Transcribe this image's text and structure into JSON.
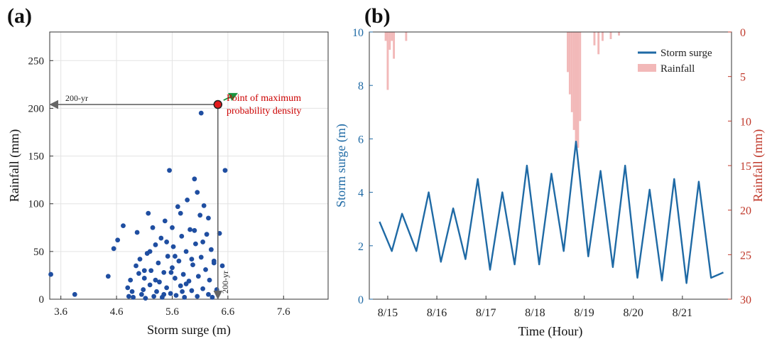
{
  "panel_a_label": "(a)",
  "panel_b_label": "(b)",
  "chart_data": [
    {
      "type": "scatter",
      "xlabel": "Storm surge (m)",
      "ylabel": "Rainfall (mm)",
      "xlim": [
        3.4,
        8.4
      ],
      "ylim": [
        0,
        280
      ],
      "xticks": [
        "3.6",
        "4.6",
        "5.6",
        "6.6",
        "7.6"
      ],
      "yticks": [
        "0",
        "50",
        "100",
        "150",
        "200",
        "250"
      ],
      "grid": true,
      "point_color": "#1f4ea1",
      "highlight": {
        "x": 6.42,
        "y": 204,
        "color": "#e41a1c",
        "label": "Point of maximum probability density"
      },
      "annotations": {
        "horizontal_label": "200-yr",
        "vertical_label": "200-yr",
        "label_color": "#cc0000",
        "arrow_color": "#1a9641"
      },
      "points": [
        [
          3.42,
          26
        ],
        [
          3.85,
          5
        ],
        [
          4.45,
          24
        ],
        [
          4.55,
          53
        ],
        [
          4.62,
          62
        ],
        [
          4.72,
          77
        ],
        [
          4.8,
          12
        ],
        [
          4.82,
          3
        ],
        [
          4.85,
          20
        ],
        [
          4.88,
          8
        ],
        [
          4.9,
          2
        ],
        [
          4.95,
          35
        ],
        [
          4.97,
          70
        ],
        [
          5.0,
          27
        ],
        [
          5.02,
          42
        ],
        [
          5.05,
          5
        ],
        [
          5.08,
          10
        ],
        [
          5.1,
          22
        ],
        [
          5.12,
          1
        ],
        [
          5.15,
          48
        ],
        [
          5.17,
          90
        ],
        [
          5.2,
          15
        ],
        [
          5.22,
          30
        ],
        [
          5.25,
          75
        ],
        [
          5.27,
          3
        ],
        [
          5.3,
          57
        ],
        [
          5.32,
          8
        ],
        [
          5.35,
          38
        ],
        [
          5.37,
          18
        ],
        [
          5.4,
          64
        ],
        [
          5.42,
          2
        ],
        [
          5.45,
          28
        ],
        [
          5.47,
          82
        ],
        [
          5.5,
          12
        ],
        [
          5.52,
          45
        ],
        [
          5.55,
          135
        ],
        [
          5.57,
          6
        ],
        [
          5.6,
          33
        ],
        [
          5.62,
          55
        ],
        [
          5.65,
          22
        ],
        [
          5.67,
          4
        ],
        [
          5.7,
          97
        ],
        [
          5.72,
          40
        ],
        [
          5.75,
          14
        ],
        [
          5.77,
          66
        ],
        [
          5.8,
          26
        ],
        [
          5.82,
          2
        ],
        [
          5.85,
          50
        ],
        [
          5.87,
          104
        ],
        [
          5.9,
          19
        ],
        [
          5.92,
          73
        ],
        [
          5.95,
          9
        ],
        [
          5.97,
          36
        ],
        [
          6.0,
          126
        ],
        [
          6.02,
          58
        ],
        [
          6.05,
          3
        ],
        [
          6.07,
          24
        ],
        [
          6.1,
          88
        ],
        [
          6.12,
          44
        ],
        [
          6.15,
          11
        ],
        [
          6.17,
          98
        ],
        [
          6.2,
          31
        ],
        [
          6.22,
          68
        ],
        [
          6.25,
          5
        ],
        [
          6.27,
          20
        ],
        [
          6.3,
          52
        ],
        [
          6.32,
          2
        ],
        [
          6.35,
          38
        ],
        [
          6.4,
          10
        ],
        [
          6.45,
          69
        ],
        [
          6.5,
          35
        ],
        [
          6.55,
          135
        ],
        [
          6.12,
          195
        ],
        [
          5.5,
          60
        ],
        [
          5.6,
          75
        ],
        [
          5.75,
          90
        ],
        [
          5.3,
          20
        ],
        [
          5.45,
          5
        ],
        [
          6.05,
          112
        ],
        [
          5.95,
          42
        ],
        [
          5.85,
          16
        ],
        [
          5.2,
          50
        ],
        [
          5.1,
          30
        ],
        [
          6.25,
          85
        ],
        [
          6.15,
          60
        ],
        [
          5.78,
          8
        ],
        [
          5.65,
          45
        ],
        [
          5.58,
          28
        ],
        [
          6.35,
          40
        ],
        [
          6.0,
          72
        ]
      ]
    },
    {
      "type": "line",
      "xlabel": "Time (Hour)",
      "ylabel": "Storm surge (m)",
      "y2label": "Rainfall (mm)",
      "xticks": [
        "8/15",
        "8/16",
        "8/17",
        "8/18",
        "8/19",
        "8/20",
        "8/21"
      ],
      "xlim": [
        "2019-08-14 15:00",
        "2019-08-22 00:00"
      ],
      "ylim": [
        0,
        10
      ],
      "y2lim": [
        0,
        30
      ],
      "y2_inverted": true,
      "yticks": [
        "0",
        "2",
        "4",
        "6",
        "8",
        "10"
      ],
      "y2ticks": [
        "0",
        "5",
        "10",
        "15",
        "20",
        "25",
        "30"
      ],
      "legend_position": "top-right",
      "series": [
        {
          "name": "Storm surge",
          "color": "#1f6aa5",
          "x": [
            "2019-08-14 20:00",
            "2019-08-15 02:00",
            "2019-08-15 07:00",
            "2019-08-15 14:00",
            "2019-08-15 20:00",
            "2019-08-16 02:00",
            "2019-08-16 08:00",
            "2019-08-16 14:00",
            "2019-08-16 20:00",
            "2019-08-17 02:00",
            "2019-08-17 08:00",
            "2019-08-17 14:00",
            "2019-08-17 20:00",
            "2019-08-18 02:00",
            "2019-08-18 08:00",
            "2019-08-18 14:00",
            "2019-08-18 20:00",
            "2019-08-19 02:00",
            "2019-08-19 08:00",
            "2019-08-19 14:00",
            "2019-08-19 20:00",
            "2019-08-20 02:00",
            "2019-08-20 08:00",
            "2019-08-20 14:00",
            "2019-08-20 20:00",
            "2019-08-21 02:00",
            "2019-08-21 08:00",
            "2019-08-21 14:00",
            "2019-08-21 20:00"
          ],
          "values": [
            2.9,
            1.8,
            3.2,
            1.8,
            4.0,
            1.4,
            3.4,
            1.5,
            4.5,
            1.1,
            4.0,
            1.3,
            5.0,
            1.3,
            4.7,
            1.8,
            5.9,
            1.6,
            4.8,
            1.2,
            5.0,
            0.8,
            4.1,
            0.7,
            4.5,
            0.6,
            4.4,
            0.8,
            1.0
          ]
        },
        {
          "name": "Rainfall",
          "type": "bar",
          "color": "#f2b8b8",
          "x": [
            "2019-08-14 23:00",
            "2019-08-15 00:00",
            "2019-08-15 01:00",
            "2019-08-15 02:00",
            "2019-08-15 03:00",
            "2019-08-15 09:00",
            "2019-08-18 16:00",
            "2019-08-18 17:00",
            "2019-08-18 18:00",
            "2019-08-18 19:00",
            "2019-08-18 20:00",
            "2019-08-18 21:00",
            "2019-08-18 22:00",
            "2019-08-19 05:00",
            "2019-08-19 07:00",
            "2019-08-19 09:00",
            "2019-08-19 13:00",
            "2019-08-19 17:00"
          ],
          "values": [
            1,
            6.5,
            2,
            1,
            3,
            1,
            4.5,
            7,
            9,
            11,
            12.5,
            13,
            10,
            1.5,
            2.5,
            1,
            0.8,
            0.4
          ]
        }
      ]
    }
  ]
}
